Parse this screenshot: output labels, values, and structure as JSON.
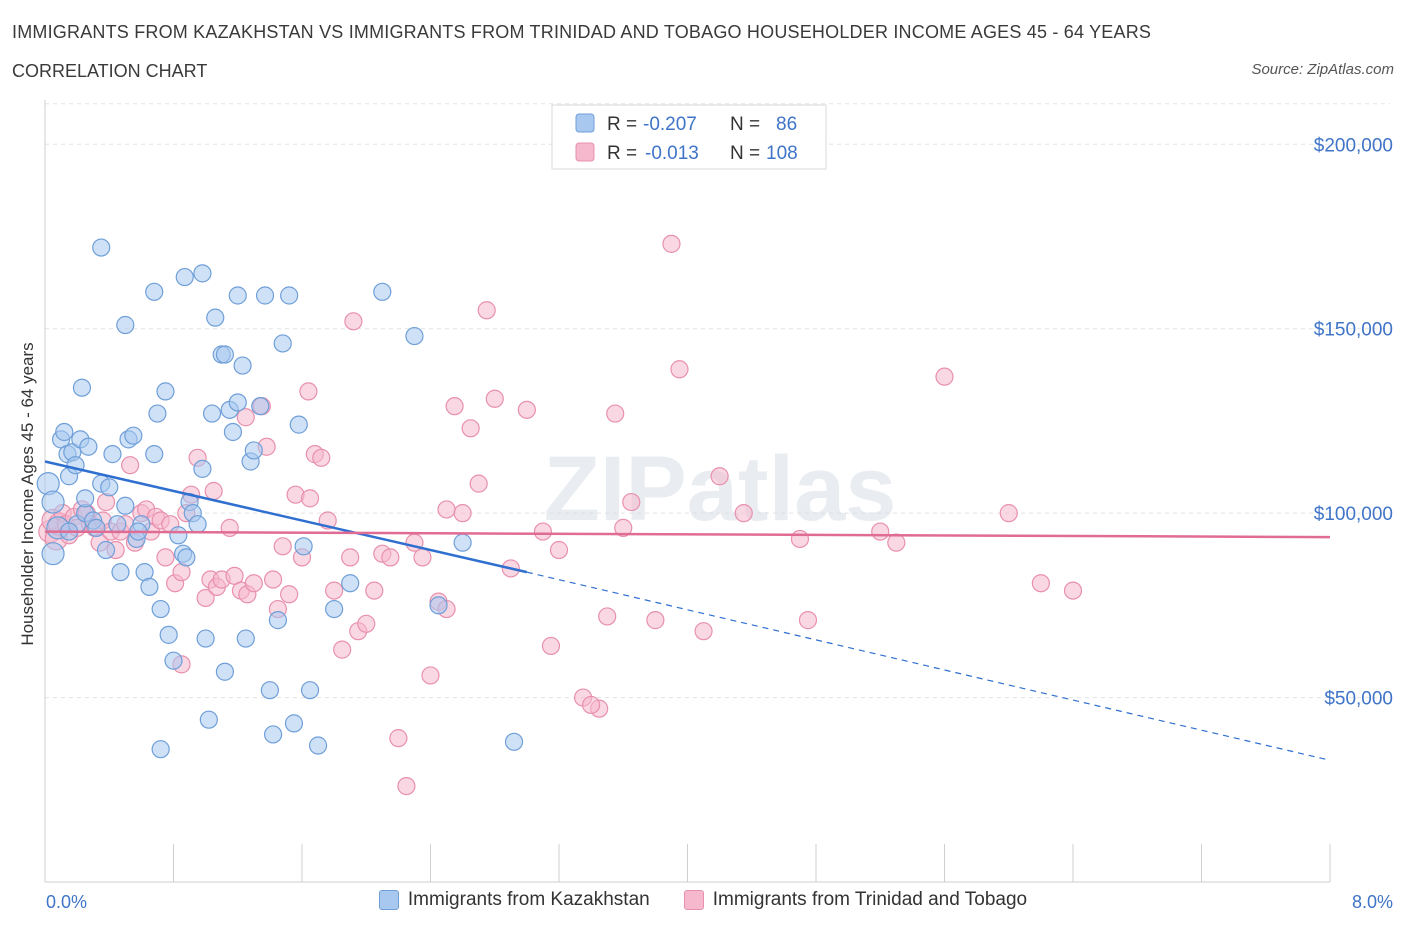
{
  "header": {
    "title": "IMMIGRANTS FROM KAZAKHSTAN VS IMMIGRANTS FROM TRINIDAD AND TOBAGO HOUSEHOLDER INCOME AGES 45 - 64 YEARS",
    "subtitle": "CORRELATION CHART",
    "source": "Source: ZipAtlas.com"
  },
  "watermark": "ZIPatlas",
  "colors": {
    "blue_fill": "#a8c8f0",
    "blue_stroke": "#6f9fd8",
    "blue_line": "#2f6fd0",
    "pink_fill": "#f5b8cc",
    "pink_stroke": "#e890ad",
    "pink_line": "#e06c93",
    "axis_label": "#3f74c8"
  },
  "legend_box": {
    "rows": [
      {
        "r_label": "R =",
        "r_value": "-0.207",
        "n_label": "N =",
        "n_value": "86"
      },
      {
        "r_label": "R =",
        "r_value": "-0.013",
        "n_label": "N =",
        "n_value": "108"
      }
    ]
  },
  "chart_data": {
    "type": "scatter",
    "title": "IMMIGRANTS FROM KAZAKHSTAN VS IMMIGRANTS FROM TRINIDAD AND TOBAGO HOUSEHOLDER INCOME AGES 45 - 64 YEARS",
    "xlabel": "",
    "ylabel": "Householder Income Ages 45 - 64 years",
    "xlim": [
      0,
      8
    ],
    "ylim": [
      0,
      212000
    ],
    "x_tick_labels": [
      "0.0%",
      "8.0%"
    ],
    "y_ticks": [
      50000,
      100000,
      150000,
      200000
    ],
    "y_tick_labels": [
      "$50,000",
      "$100,000",
      "$150,000",
      "$200,000"
    ],
    "grid": true,
    "legend_position": "bottom",
    "series": [
      {
        "name": "Immigrants from Kazakhstan",
        "color": "#a8c8f0",
        "trend": {
          "x": [
            0.0,
            3.0
          ],
          "y": [
            114000,
            84000
          ],
          "dashed_to": [
            8.0,
            33000
          ]
        },
        "points": [
          [
            0.02,
            108000
          ],
          [
            0.05,
            103000
          ],
          [
            0.08,
            96000
          ],
          [
            0.1,
            120000
          ],
          [
            0.12,
            122000
          ],
          [
            0.14,
            116000
          ],
          [
            0.15,
            110000
          ],
          [
            0.17,
            116500
          ],
          [
            0.19,
            113000
          ],
          [
            0.2,
            97000
          ],
          [
            0.22,
            120000
          ],
          [
            0.23,
            134000
          ],
          [
            0.25,
            100000
          ],
          [
            0.27,
            118000
          ],
          [
            0.3,
            98000
          ],
          [
            0.32,
            96000
          ],
          [
            0.35,
            108000
          ],
          [
            0.38,
            90000
          ],
          [
            0.4,
            107000
          ],
          [
            0.42,
            116000
          ],
          [
            0.45,
            97000
          ],
          [
            0.47,
            84000
          ],
          [
            0.5,
            102000
          ],
          [
            0.52,
            120000
          ],
          [
            0.55,
            121000
          ],
          [
            0.57,
            93000
          ],
          [
            0.6,
            97000
          ],
          [
            0.62,
            84000
          ],
          [
            0.65,
            80000
          ],
          [
            0.68,
            116000
          ],
          [
            0.7,
            127000
          ],
          [
            0.72,
            74000
          ],
          [
            0.75,
            133000
          ],
          [
            0.77,
            67000
          ],
          [
            0.8,
            60000
          ],
          [
            0.83,
            94000
          ],
          [
            0.86,
            89000
          ],
          [
            0.9,
            103000
          ],
          [
            0.92,
            100000
          ],
          [
            0.95,
            97000
          ],
          [
            0.98,
            112000
          ],
          [
            1.0,
            66000
          ],
          [
            1.02,
            44000
          ],
          [
            1.04,
            127000
          ],
          [
            1.06,
            153000
          ],
          [
            1.1,
            143000
          ],
          [
            1.12,
            57000
          ],
          [
            1.15,
            128000
          ],
          [
            1.17,
            122000
          ],
          [
            1.2,
            130000
          ],
          [
            1.23,
            140000
          ],
          [
            1.25,
            66000
          ],
          [
            1.28,
            114000
          ],
          [
            1.3,
            117000
          ],
          [
            1.34,
            129000
          ],
          [
            1.37,
            159000
          ],
          [
            1.4,
            52000
          ],
          [
            1.42,
            40000
          ],
          [
            1.45,
            71000
          ],
          [
            1.48,
            146000
          ],
          [
            1.52,
            159000
          ],
          [
            1.55,
            43000
          ],
          [
            1.58,
            124000
          ],
          [
            1.61,
            91000
          ],
          [
            1.65,
            52000
          ],
          [
            1.7,
            37000
          ],
          [
            1.8,
            74000
          ],
          [
            1.9,
            81000
          ],
          [
            2.1,
            160000
          ],
          [
            2.3,
            148000
          ],
          [
            2.45,
            75000
          ],
          [
            2.6,
            92000
          ],
          [
            2.92,
            38000
          ],
          [
            0.35,
            172000
          ],
          [
            0.5,
            151000
          ],
          [
            0.58,
            95000
          ],
          [
            0.68,
            160000
          ],
          [
            0.87,
            164000
          ],
          [
            0.98,
            165000
          ],
          [
            1.12,
            143000
          ],
          [
            1.2,
            159000
          ],
          [
            0.72,
            36000
          ],
          [
            0.88,
            88000
          ],
          [
            0.25,
            104000
          ],
          [
            0.15,
            95000
          ],
          [
            0.05,
            89000
          ]
        ]
      },
      {
        "name": "Immigrants from Trinidad and Tobago",
        "color": "#f5b8cc",
        "trend": {
          "x": [
            0.0,
            8.0
          ],
          "y": [
            95000,
            93500
          ]
        },
        "points": [
          [
            0.03,
            95000
          ],
          [
            0.05,
            98000
          ],
          [
            0.07,
            93000
          ],
          [
            0.09,
            97000
          ],
          [
            0.11,
            100000
          ],
          [
            0.13,
            97000
          ],
          [
            0.15,
            94000
          ],
          [
            0.18,
            99000
          ],
          [
            0.2,
            96000
          ],
          [
            0.23,
            101000
          ],
          [
            0.26,
            100000
          ],
          [
            0.28,
            97000
          ],
          [
            0.31,
            96000
          ],
          [
            0.34,
            92000
          ],
          [
            0.36,
            98000
          ],
          [
            0.38,
            103000
          ],
          [
            0.41,
            95000
          ],
          [
            0.44,
            90000
          ],
          [
            0.47,
            95000
          ],
          [
            0.5,
            97000
          ],
          [
            0.53,
            113000
          ],
          [
            0.56,
            92000
          ],
          [
            0.6,
            100000
          ],
          [
            0.63,
            101000
          ],
          [
            0.66,
            95000
          ],
          [
            0.69,
            99000
          ],
          [
            0.72,
            98000
          ],
          [
            0.75,
            88000
          ],
          [
            0.78,
            97000
          ],
          [
            0.81,
            81000
          ],
          [
            0.85,
            84000
          ],
          [
            0.88,
            100000
          ],
          [
            0.91,
            105000
          ],
          [
            0.95,
            115000
          ],
          [
            1.0,
            77000
          ],
          [
            1.03,
            82000
          ],
          [
            1.07,
            80000
          ],
          [
            1.1,
            82000
          ],
          [
            1.15,
            96000
          ],
          [
            1.18,
            83000
          ],
          [
            1.22,
            79000
          ],
          [
            1.26,
            78000
          ],
          [
            1.3,
            81000
          ],
          [
            1.35,
            129000
          ],
          [
            1.38,
            118000
          ],
          [
            1.42,
            82000
          ],
          [
            1.45,
            74000
          ],
          [
            1.48,
            91000
          ],
          [
            1.52,
            78000
          ],
          [
            1.56,
            105000
          ],
          [
            1.6,
            88000
          ],
          [
            1.64,
            133000
          ],
          [
            1.68,
            116000
          ],
          [
            1.72,
            115000
          ],
          [
            1.76,
            98000
          ],
          [
            1.8,
            79000
          ],
          [
            1.85,
            63000
          ],
          [
            1.9,
            88000
          ],
          [
            1.95,
            68000
          ],
          [
            2.0,
            70000
          ],
          [
            2.05,
            79000
          ],
          [
            2.1,
            89000
          ],
          [
            2.15,
            88000
          ],
          [
            2.2,
            39000
          ],
          [
            2.25,
            26000
          ],
          [
            2.3,
            92000
          ],
          [
            2.35,
            88000
          ],
          [
            2.4,
            56000
          ],
          [
            2.45,
            76000
          ],
          [
            2.5,
            101000
          ],
          [
            2.55,
            129000
          ],
          [
            2.6,
            100000
          ],
          [
            2.65,
            123000
          ],
          [
            2.7,
            108000
          ],
          [
            2.75,
            155000
          ],
          [
            2.8,
            131000
          ],
          [
            2.9,
            85000
          ],
          [
            3.0,
            128000
          ],
          [
            3.1,
            95000
          ],
          [
            3.15,
            64000
          ],
          [
            3.2,
            90000
          ],
          [
            3.35,
            50000
          ],
          [
            3.45,
            47000
          ],
          [
            3.5,
            72000
          ],
          [
            3.55,
            127000
          ],
          [
            3.6,
            96000
          ],
          [
            3.65,
            103000
          ],
          [
            3.8,
            71000
          ],
          [
            3.9,
            173000
          ],
          [
            3.95,
            139000
          ],
          [
            4.1,
            68000
          ],
          [
            4.2,
            110000
          ],
          [
            4.35,
            100000
          ],
          [
            4.7,
            93000
          ],
          [
            4.75,
            71000
          ],
          [
            5.2,
            95000
          ],
          [
            5.3,
            92000
          ],
          [
            5.6,
            137000
          ],
          [
            6.0,
            100000
          ],
          [
            6.2,
            81000
          ],
          [
            6.4,
            79000
          ],
          [
            1.92,
            152000
          ],
          [
            2.5,
            74000
          ],
          [
            0.85,
            59000
          ],
          [
            1.05,
            106000
          ],
          [
            1.25,
            126000
          ],
          [
            1.65,
            104000
          ],
          [
            3.4,
            48000
          ]
        ]
      }
    ]
  }
}
